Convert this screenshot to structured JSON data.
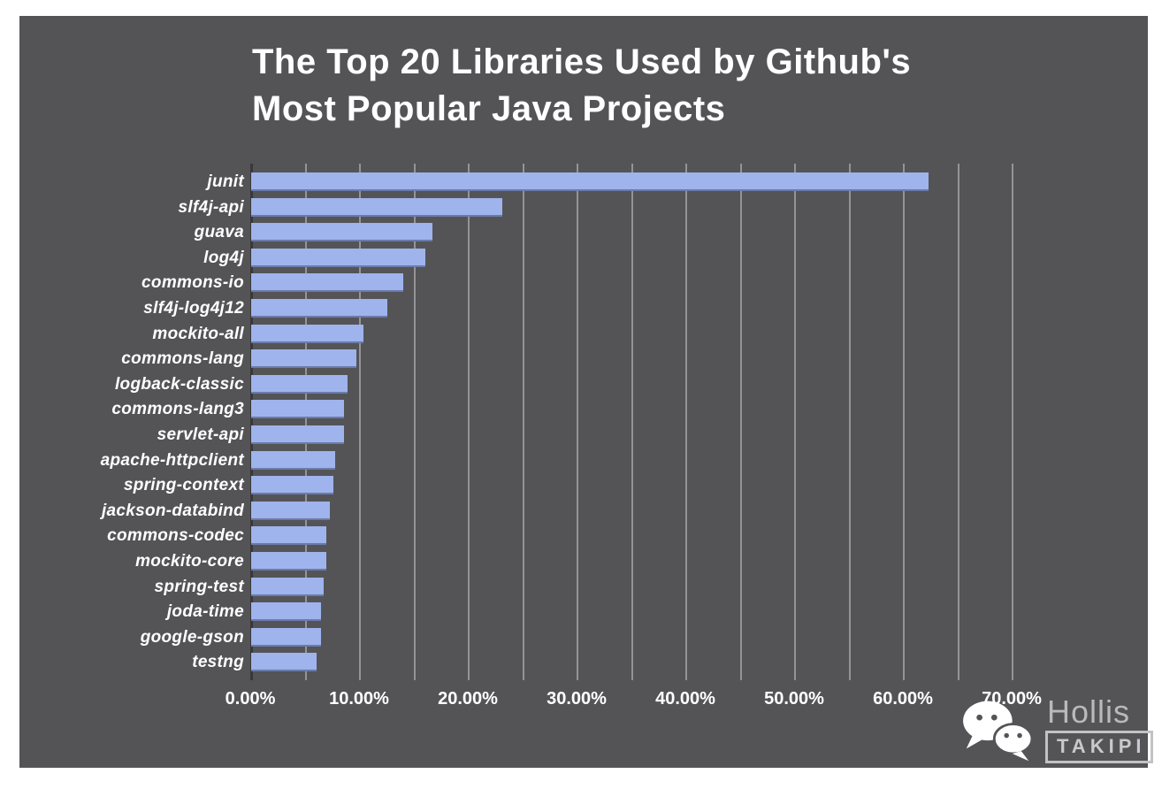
{
  "title": {
    "line1": "The Top 20 Libraries Used by Github's",
    "line2": "Most Popular Java Projects"
  },
  "chart_data": {
    "type": "bar",
    "orientation": "horizontal",
    "title": "The Top 20 Libraries Used by Github's Most Popular Java Projects",
    "categories": [
      "junit",
      "slf4j-api",
      "guava",
      "log4j",
      "commons-io",
      "slf4j-log4j12",
      "mockito-all",
      "commons-lang",
      "logback-classic",
      "commons-lang3",
      "servlet-api",
      "apache-httpclient",
      "spring-context",
      "jackson-databind",
      "commons-codec",
      "mockito-core",
      "spring-test",
      "joda-time",
      "google-gson",
      "testng"
    ],
    "values": [
      62.3,
      23.1,
      16.7,
      16.0,
      14.0,
      12.5,
      10.3,
      9.7,
      8.9,
      8.5,
      8.5,
      7.7,
      7.6,
      7.2,
      6.9,
      6.9,
      6.7,
      6.4,
      6.4,
      6.0
    ],
    "unit": "%",
    "xlabel": "",
    "ylabel": "",
    "xlim": [
      0,
      70
    ],
    "xticks": [
      "0.00%",
      "10.00%",
      "20.00%",
      "30.00%",
      "40.00%",
      "50.00%",
      "60.00%",
      "70.00%"
    ],
    "xtick_values": [
      0,
      10,
      20,
      30,
      40,
      50,
      60,
      70
    ],
    "gridline_interval_percent": 5,
    "grid": "vertical-lines",
    "legend": "none",
    "bar_color": "#9fb3ec",
    "background_color": "#545457",
    "text_color": "#ffffff"
  },
  "branding": {
    "name": "Hollis",
    "logo_box": "TAKIPI"
  }
}
